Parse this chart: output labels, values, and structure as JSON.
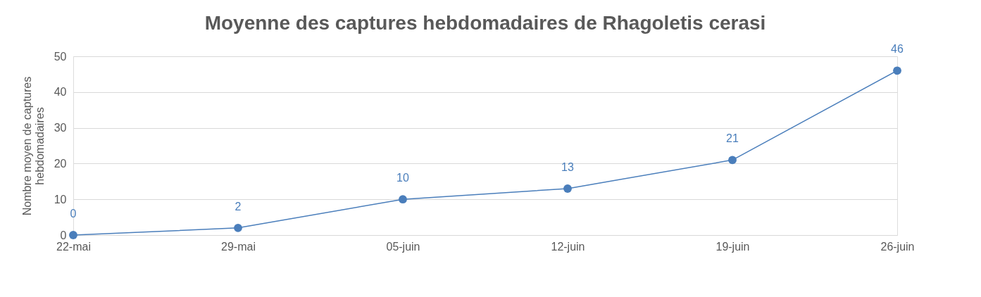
{
  "chart_data": {
    "type": "line",
    "title": "Moyenne des captures hebdomadaires de Rhagoletis cerasi",
    "ylabel": "Nombre moyen de captures\nhebdomadaires",
    "categories": [
      "22-mai",
      "29-mai",
      "05-juin",
      "12-juin",
      "19-juin",
      "26-juin"
    ],
    "series": [
      {
        "color": "#4a7ebb",
        "values": [
          0,
          2,
          10,
          13,
          21,
          46
        ]
      }
    ],
    "ylim": [
      0,
      50
    ],
    "yticks": [
      0,
      10,
      20,
      30,
      40,
      50
    ],
    "grid": "y",
    "marker": "circle",
    "line_style": "solid",
    "data_labels": true,
    "legend": false
  }
}
